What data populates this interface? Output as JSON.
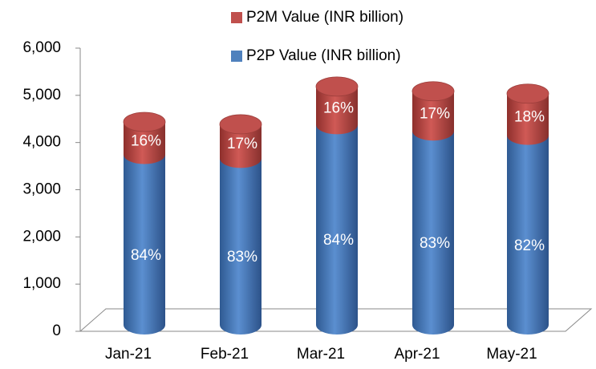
{
  "chart_data": {
    "type": "stacked_cylinder",
    "categories": [
      "Jan-21",
      "Feb-21",
      "Mar-21",
      "Apr-21",
      "May-21"
    ],
    "series": [
      {
        "name": "P2P Value (INR billion)",
        "color": "#4f81bd",
        "values": [
          3612,
          3528,
          4242,
          4109,
          4018
        ],
        "value_labels": [
          "84%",
          "83%",
          "84%",
          "83%",
          "82%"
        ]
      },
      {
        "name": "P2M Value (INR billion)",
        "color": "#c0504d",
        "values": [
          688,
          722,
          808,
          841,
          882
        ],
        "value_labels": [
          "16%",
          "17%",
          "16%",
          "17%",
          "18%"
        ]
      }
    ],
    "ylim": [
      0,
      6000
    ],
    "yticks": [
      0,
      {
        "value": 1000,
        "label": "1,000"
      },
      {
        "value": 2000,
        "label": "2,000"
      },
      {
        "value": 3000,
        "label": "3,000"
      },
      {
        "value": 4000,
        "label": "4,000"
      },
      {
        "value": 5000,
        "label": "5,000"
      },
      {
        "value": 6000,
        "label": "6,000"
      }
    ]
  }
}
